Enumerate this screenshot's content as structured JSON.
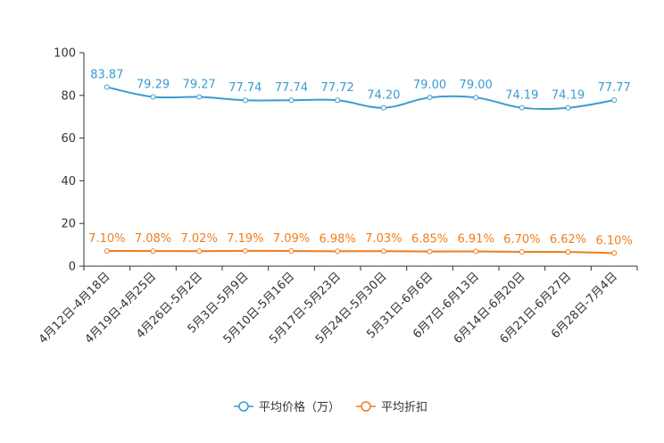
{
  "chart_data": {
    "type": "line",
    "title": "",
    "xlabel": "",
    "ylabel": "",
    "ylim": [
      0,
      100
    ],
    "yticks": [
      0,
      20,
      40,
      60,
      80,
      100
    ],
    "categories": [
      "4月12日-4月18日",
      "4月19日-4月25日",
      "4月26日-5月2日",
      "5月3日-5月9日",
      "5月10日-5月16日",
      "5月17日-5月23日",
      "5月24日-5月30日",
      "5月31日-6月6日",
      "6月7日-6月13日",
      "6月14日-6月20日",
      "6月21日-6月27日",
      "6月28日-7月4日"
    ],
    "series": [
      {
        "name": "平均价格（万）",
        "color": "#3a9bd0",
        "values": [
          83.87,
          79.29,
          79.27,
          77.74,
          77.74,
          77.72,
          74.2,
          79.0,
          79.0,
          74.19,
          74.19,
          77.77
        ],
        "labels": [
          "83.87",
          "79.29",
          "79.27",
          "77.74",
          "77.74",
          "77.72",
          "74.20",
          "79.00",
          "79.00",
          "74.19",
          "74.19",
          "77.77"
        ]
      },
      {
        "name": "平均折扣",
        "color": "#f07d1d",
        "values": [
          7.1,
          7.08,
          7.02,
          7.19,
          7.09,
          6.98,
          7.03,
          6.85,
          6.91,
          6.7,
          6.62,
          6.1
        ],
        "labels": [
          "7.10%",
          "7.08%",
          "7.02%",
          "7.19%",
          "7.09%",
          "6.98%",
          "7.03%",
          "6.85%",
          "6.91%",
          "6.70%",
          "6.62%",
          "6.10%"
        ]
      }
    ],
    "legend": "bottom-center"
  }
}
